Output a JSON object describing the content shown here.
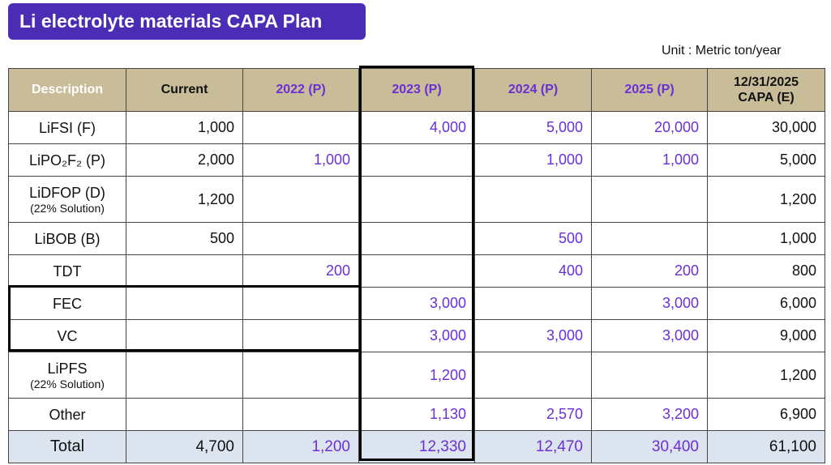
{
  "title": "Li electrolyte materials CAPA Plan",
  "unit": "Unit : Metric ton/year",
  "headers": {
    "description": "Description",
    "current": "Current",
    "y2022": "2022 (P)",
    "y2023": "2023 (P)",
    "y2024": "2024 (P)",
    "y2025": "2025 (P)",
    "capa_line1": "12/31/2025",
    "capa_line2": "CAPA (E)"
  },
  "rows": [
    {
      "label": "LiFSI (F)",
      "sub": "",
      "current": "1,000",
      "y2022": "",
      "y2023": "4,000",
      "y2024": "5,000",
      "y2025": "20,000",
      "capa": "30,000"
    },
    {
      "label": "LiPO₂F₂ (P)",
      "sub": "",
      "current": "2,000",
      "y2022": "1,000",
      "y2023": "",
      "y2024": "1,000",
      "y2025": "1,000",
      "capa": "5,000"
    },
    {
      "label": "LiDFOP (D)",
      "sub": "(22% Solution)",
      "current": "1,200",
      "y2022": "",
      "y2023": "",
      "y2024": "",
      "y2025": "",
      "capa": "1,200"
    },
    {
      "label": "LiBOB (B)",
      "sub": "",
      "current": "500",
      "y2022": "",
      "y2023": "",
      "y2024": "500",
      "y2025": "",
      "capa": "1,000"
    },
    {
      "label": "TDT",
      "sub": "",
      "current": "",
      "y2022": "200",
      "y2023": "",
      "y2024": "400",
      "y2025": "200",
      "capa": "800"
    },
    {
      "label": "FEC",
      "sub": "",
      "current": "",
      "y2022": "",
      "y2023": "3,000",
      "y2024": "",
      "y2025": "3,000",
      "capa": "6,000"
    },
    {
      "label": "VC",
      "sub": "",
      "current": "",
      "y2022": "",
      "y2023": "3,000",
      "y2024": "3,000",
      "y2025": "3,000",
      "capa": "9,000"
    },
    {
      "label": "LiPFS",
      "sub": "(22% Solution)",
      "current": "",
      "y2022": "",
      "y2023": "1,200",
      "y2024": "",
      "y2025": "",
      "capa": "1,200"
    },
    {
      "label": "Other",
      "sub": "",
      "current": "",
      "y2022": "",
      "y2023": "1,130",
      "y2024": "2,570",
      "y2025": "3,200",
      "capa": "6,900"
    }
  ],
  "total": {
    "label": "Total",
    "current": "4,700",
    "y2022": "1,200",
    "y2023": "12,330",
    "y2024": "12,470",
    "y2025": "30,400",
    "capa": "61,100"
  },
  "colors": {
    "title_bg": "#4a2db4",
    "header_bg": "#c8bd98",
    "year_text": "#6b2fd6",
    "total_bg": "#dbe4ef"
  }
}
